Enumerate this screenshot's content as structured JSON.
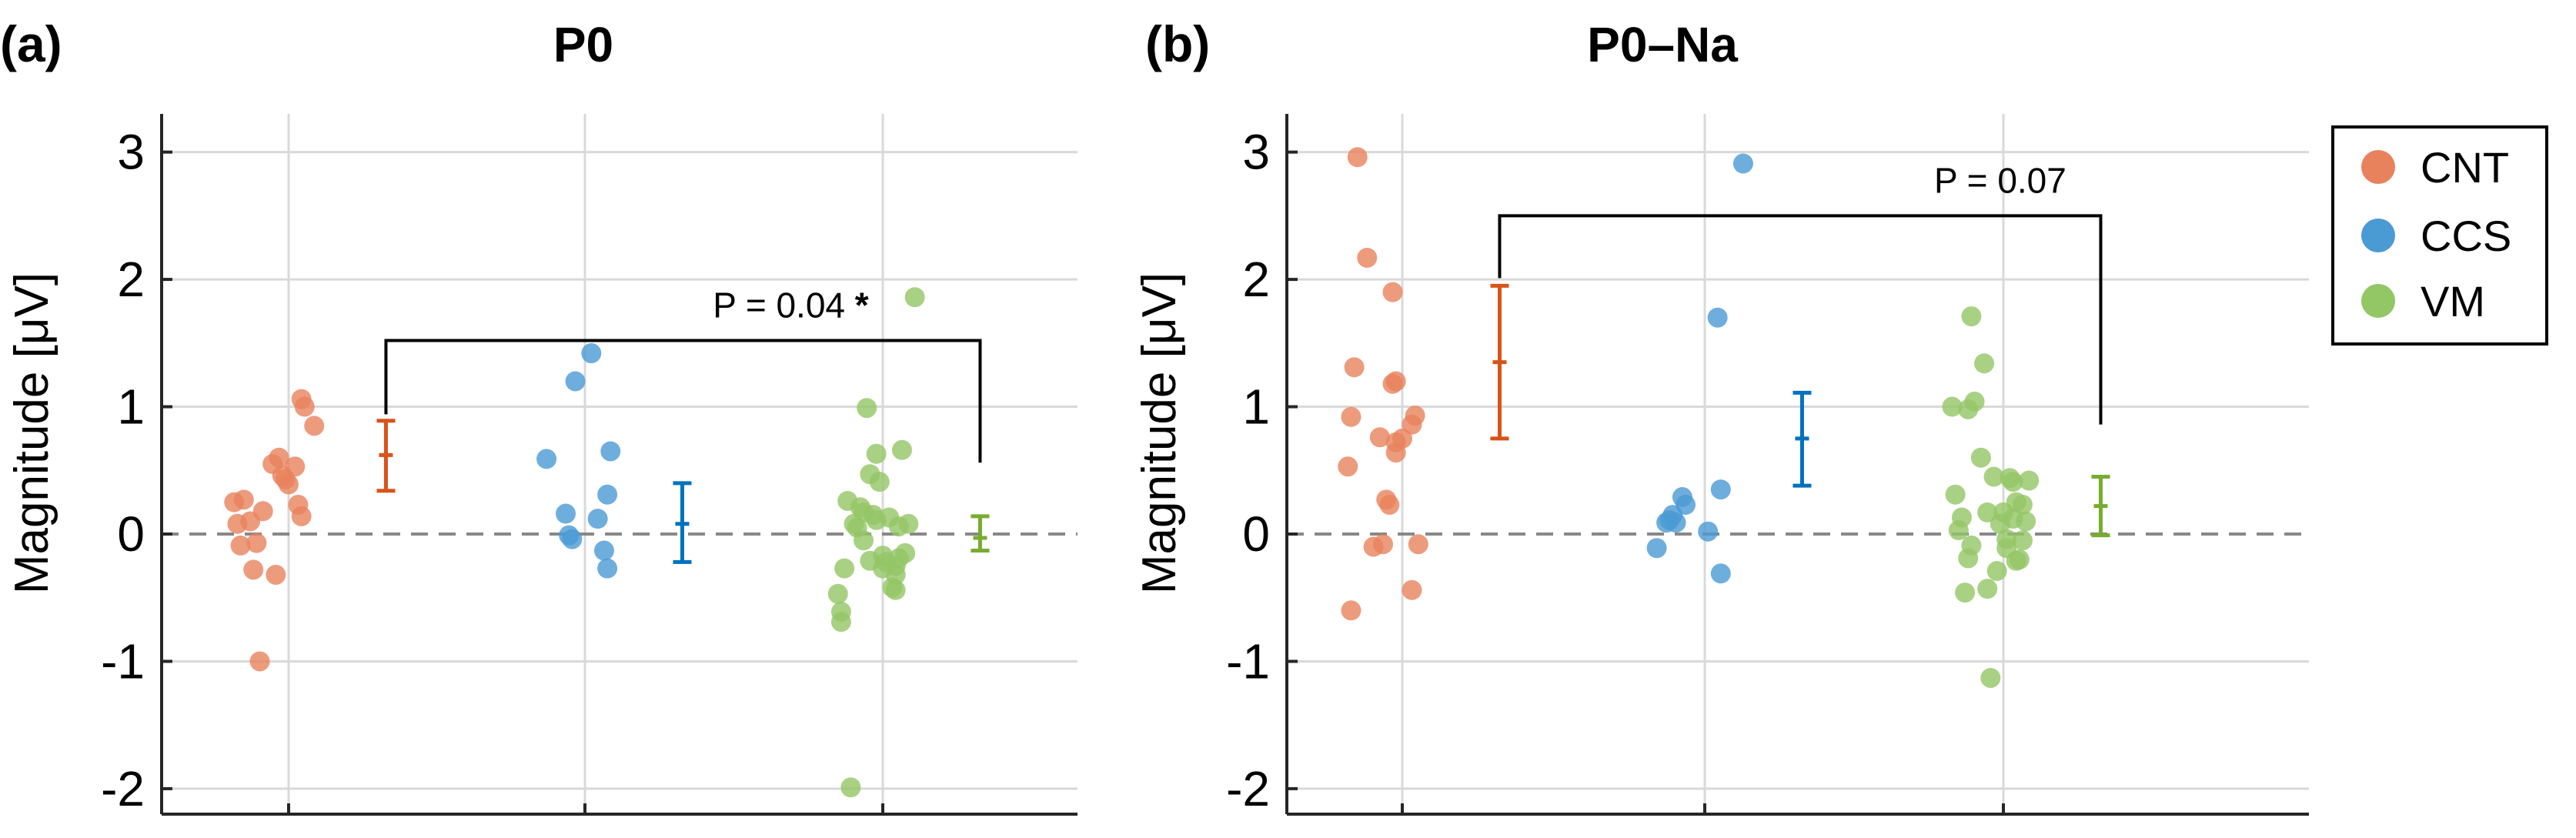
{
  "chart_data": [
    {
      "type": "scatter",
      "panel_label": "(a)",
      "title": "P0",
      "ylabel": "Magnitude [μV]",
      "ylim": [
        -2.2,
        3.3
      ],
      "yticks": [
        -2,
        -1,
        0,
        1,
        2,
        3
      ],
      "ytick_labels": [
        "-2",
        "-1",
        "0",
        "1",
        "2",
        "3"
      ],
      "grid": true,
      "zero_line": "dashed",
      "categories": [
        "CNT",
        "CCS",
        "VM"
      ],
      "series": [
        {
          "name": "CNT",
          "points": [
            [
              -0.17,
              0.25
            ],
            [
              -0.14,
              0.27
            ],
            [
              -0.16,
              0.08
            ],
            [
              -0.12,
              0.1
            ],
            [
              -0.15,
              -0.09
            ],
            [
              -0.1,
              -0.07
            ],
            [
              -0.11,
              -0.28
            ],
            [
              -0.08,
              0.18
            ],
            [
              -0.09,
              -1.0
            ],
            [
              -0.05,
              0.55
            ],
            [
              -0.03,
              0.6
            ],
            [
              -0.02,
              0.46
            ],
            [
              -0.01,
              0.43
            ],
            [
              0.0,
              0.39
            ],
            [
              -0.04,
              -0.32
            ],
            [
              0.02,
              0.53
            ],
            [
              0.04,
              1.06
            ],
            [
              0.05,
              1.0
            ],
            [
              0.03,
              0.23
            ],
            [
              0.04,
              0.14
            ],
            [
              0.08,
              0.85
            ]
          ],
          "mean": 0.62,
          "err_low": 0.34,
          "err_high": 0.89
        },
        {
          "name": "CCS",
          "points": [
            [
              -0.12,
              0.59
            ],
            [
              -0.06,
              0.16
            ],
            [
              -0.05,
              -0.01
            ],
            [
              -0.04,
              -0.04
            ],
            [
              -0.03,
              1.2
            ],
            [
              0.02,
              1.42
            ],
            [
              0.04,
              0.12
            ],
            [
              0.06,
              -0.13
            ],
            [
              0.07,
              0.31
            ],
            [
              0.08,
              0.65
            ],
            [
              0.07,
              -0.27
            ]
          ],
          "mean": 0.08,
          "err_low": -0.22,
          "err_high": 0.4
        },
        {
          "name": "VM",
          "points": [
            [
              -0.14,
              -0.47
            ],
            [
              -0.13,
              -0.61
            ],
            [
              -0.13,
              -0.69
            ],
            [
              -0.11,
              0.26
            ],
            [
              -0.1,
              -1.99
            ],
            [
              -0.09,
              0.08
            ],
            [
              -0.08,
              0.05
            ],
            [
              -0.07,
              0.21
            ],
            [
              -0.06,
              -0.05
            ],
            [
              -0.05,
              0.99
            ],
            [
              -0.04,
              -0.21
            ],
            [
              -0.04,
              0.47
            ],
            [
              -0.03,
              0.15
            ],
            [
              -0.02,
              0.63
            ],
            [
              -0.01,
              0.41
            ],
            [
              0.0,
              -0.27
            ],
            [
              0.0,
              -0.17
            ],
            [
              0.01,
              -0.22
            ],
            [
              0.02,
              0.13
            ],
            [
              0.03,
              -0.42
            ],
            [
              0.04,
              -0.32
            ],
            [
              0.05,
              0.06
            ],
            [
              0.06,
              0.66
            ],
            [
              0.05,
              -0.19
            ],
            [
              0.04,
              -0.44
            ],
            [
              0.04,
              -0.25
            ],
            [
              0.07,
              -0.15
            ],
            [
              0.08,
              0.08
            ],
            [
              -0.02,
              0.11
            ],
            [
              -0.06,
              0.17
            ],
            [
              -0.12,
              -0.27
            ],
            [
              0.1,
              1.86
            ]
          ],
          "mean": -0.03,
          "err_low": -0.13,
          "err_high": 0.14
        }
      ],
      "annotation": {
        "text": "P = 0.04 ",
        "star": "*",
        "from": "CNT",
        "to": "VM",
        "bracket_y": 1.52,
        "left_end": 0.88,
        "right_end": 0.5
      }
    },
    {
      "type": "scatter",
      "panel_label": "(b)",
      "title": "P0–Na",
      "ylabel": "Magnitude [μV]",
      "ylim": [
        -2.2,
        3.3
      ],
      "yticks": [
        -2,
        -1,
        0,
        1,
        2,
        3
      ],
      "ytick_labels": [
        "-2",
        "-1",
        "0",
        "1",
        "2",
        "3"
      ],
      "grid": true,
      "zero_line": "dashed",
      "categories": [
        "CNT",
        "CCS",
        "VM"
      ],
      "series": [
        {
          "name": "CNT",
          "points": [
            [
              -0.14,
              2.96
            ],
            [
              -0.15,
              1.31
            ],
            [
              -0.16,
              0.92
            ],
            [
              -0.17,
              0.53
            ],
            [
              -0.16,
              -0.6
            ],
            [
              -0.11,
              2.17
            ],
            [
              -0.09,
              -0.1
            ],
            [
              -0.07,
              0.76
            ],
            [
              -0.06,
              -0.08
            ],
            [
              -0.05,
              0.27
            ],
            [
              -0.04,
              0.23
            ],
            [
              -0.03,
              1.18
            ],
            [
              -0.02,
              1.2
            ],
            [
              -0.03,
              1.9
            ],
            [
              -0.02,
              0.72
            ],
            [
              -0.02,
              0.64
            ],
            [
              0.0,
              0.75
            ],
            [
              0.03,
              0.86
            ],
            [
              0.04,
              0.93
            ],
            [
              0.03,
              -0.44
            ],
            [
              0.05,
              -0.08
            ]
          ],
          "mean": 1.35,
          "err_low": 0.75,
          "err_high": 1.95
        },
        {
          "name": "CCS",
          "points": [
            [
              -0.15,
              -0.11
            ],
            [
              -0.12,
              0.09
            ],
            [
              -0.11,
              0.11
            ],
            [
              -0.1,
              0.15
            ],
            [
              -0.09,
              0.09
            ],
            [
              -0.07,
              0.29
            ],
            [
              -0.06,
              0.23
            ],
            [
              0.01,
              0.02
            ],
            [
              0.04,
              1.7
            ],
            [
              0.05,
              0.35
            ],
            [
              0.05,
              -0.31
            ],
            [
              0.12,
              2.91
            ]
          ],
          "mean": 0.75,
          "err_low": 0.38,
          "err_high": 1.11
        },
        {
          "name": "VM",
          "points": [
            [
              -0.16,
              1.0
            ],
            [
              -0.15,
              0.31
            ],
            [
              -0.14,
              0.03
            ],
            [
              -0.13,
              0.13
            ],
            [
              -0.12,
              -0.46
            ],
            [
              -0.11,
              -0.19
            ],
            [
              -0.1,
              -0.09
            ],
            [
              -0.1,
              1.71
            ],
            [
              -0.09,
              1.04
            ],
            [
              -0.07,
              0.6
            ],
            [
              -0.06,
              1.34
            ],
            [
              -0.05,
              0.17
            ],
            [
              -0.05,
              -0.43
            ],
            [
              -0.04,
              -1.13
            ],
            [
              -0.02,
              -0.29
            ],
            [
              -0.01,
              0.08
            ],
            [
              0.0,
              0.17
            ],
            [
              0.01,
              -0.04
            ],
            [
              0.02,
              0.44
            ],
            [
              0.03,
              0.41
            ],
            [
              0.03,
              0.12
            ],
            [
              0.04,
              -0.21
            ],
            [
              0.04,
              0.25
            ],
            [
              0.05,
              -0.2
            ],
            [
              0.06,
              0.23
            ],
            [
              0.06,
              -0.05
            ],
            [
              0.07,
              0.1
            ],
            [
              0.08,
              0.42
            ],
            [
              -0.03,
              0.45
            ],
            [
              -0.11,
              0.98
            ],
            [
              0.01,
              -0.11
            ]
          ],
          "mean": 0.22,
          "err_low": -0.01,
          "err_high": 0.45
        }
      ],
      "annotation": {
        "text": "P = 0.07",
        "star": "",
        "from": "CNT",
        "to": "VM",
        "bracket_y": 2.5,
        "left_end": 1.95,
        "right_end": 0.8
      }
    }
  ],
  "legend": {
    "placement": "right",
    "items": [
      {
        "label": "CNT",
        "color": "#e8825c"
      },
      {
        "label": "CCS",
        "color": "#4a9ad4"
      },
      {
        "label": "VM",
        "color": "#93c665"
      }
    ]
  },
  "colors": {
    "CNT": {
      "point": "#e8825c",
      "bar": "#d95319"
    },
    "CCS": {
      "point": "#4a9ad4",
      "bar": "#0072bd"
    },
    "VM": {
      "point": "#93c665",
      "bar": "#77ac30"
    },
    "grid": "#d9d9d9",
    "zero_line": "#888888",
    "axis": "#262626"
  }
}
